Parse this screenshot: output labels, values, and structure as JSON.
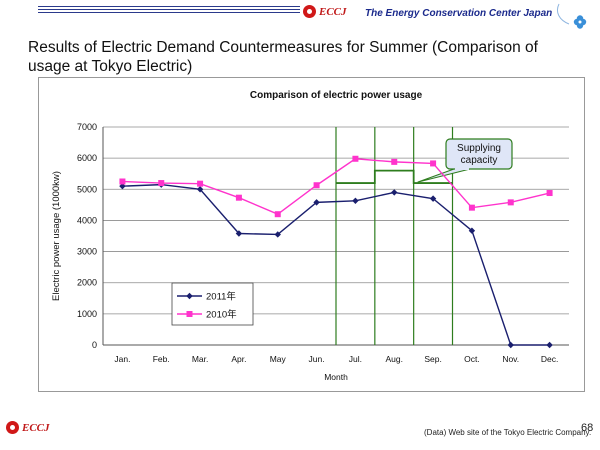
{
  "header": {
    "logo_text": "ECCJ",
    "org_name": "The Energy Conservation Center Japan"
  },
  "slide": {
    "title": "Results of Electric Demand Countermeasures for Summer (Comparison of usage at Tokyo Electric)"
  },
  "chart_data": {
    "type": "line",
    "title": "Comparison of electric power usage",
    "xlabel": "Month",
    "ylabel": "Electric power usage (1000kw)",
    "categories": [
      "Jan.",
      "Feb.",
      "Mar.",
      "Apr.",
      "May",
      "Jun.",
      "Jul.",
      "Aug.",
      "Sep.",
      "Oct.",
      "Nov.",
      "Dec."
    ],
    "ylim": [
      0,
      7000
    ],
    "yticks": [
      "0",
      "1000",
      "2000",
      "3000",
      "4000",
      "5000",
      "6000",
      "7000"
    ],
    "grid": true,
    "series": [
      {
        "name": "2011年",
        "color": "#1a1f6e",
        "marker": "diamond",
        "values": [
          5100,
          5150,
          5000,
          3580,
          3550,
          4580,
          4630,
          4900,
          4700,
          3670,
          0,
          0
        ]
      },
      {
        "name": "2010年",
        "color": "#ff33cc",
        "marker": "square",
        "values": [
          5250,
          5200,
          5180,
          4730,
          4200,
          5130,
          5980,
          5880,
          5830,
          4410,
          4580,
          4880
        ]
      }
    ],
    "annotation": {
      "text": [
        "Supplying",
        "capacity"
      ],
      "color": "#2e7d1e",
      "fill": "#dfe6f7",
      "supply_segments": [
        {
          "from": 6,
          "to": 7,
          "value": 5200
        },
        {
          "from": 7,
          "to": 8,
          "value": 5600
        },
        {
          "from": 8,
          "to": 9,
          "value": 5200
        }
      ],
      "vertical_lines_at_months": [
        6,
        7,
        8,
        9
      ]
    }
  },
  "footer": {
    "source": "(Data) Web site of the Tokyo Electric Company.",
    "page_number": "68",
    "logo_text": "ECCJ"
  }
}
